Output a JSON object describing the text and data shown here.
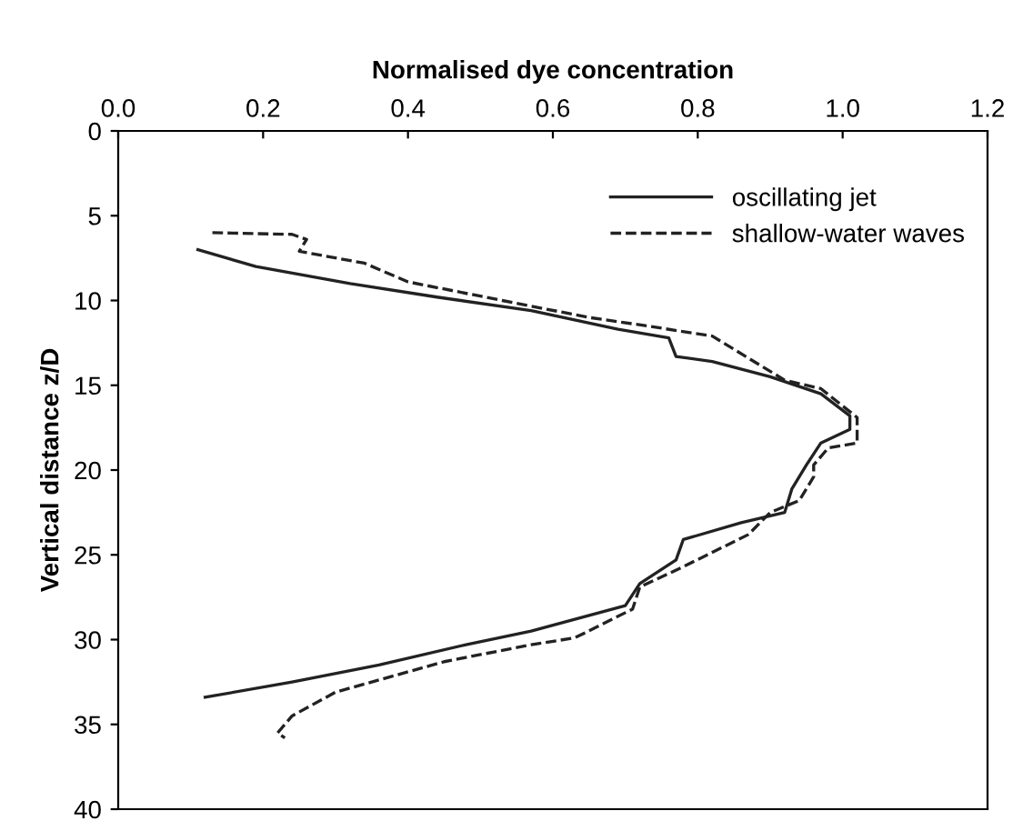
{
  "chart_data": {
    "type": "line",
    "xlabel": "Normalised dye concentration",
    "ylabel": "Vertical distance z/D",
    "xlim": [
      0,
      1.2
    ],
    "xticks": [
      {
        "value": 0,
        "label": "0.0"
      },
      {
        "value": 0.2,
        "label": "0.2"
      },
      {
        "value": 0.4,
        "label": "0.4"
      },
      {
        "value": 0.6,
        "label": "0.6"
      },
      {
        "value": 0.8,
        "label": "0.8"
      },
      {
        "value": 1.0,
        "label": "1.0"
      },
      {
        "value": 1.2,
        "label": "1.2"
      }
    ],
    "ylim": [
      40,
      0
    ],
    "yticks": [
      0,
      5,
      10,
      15,
      20,
      25,
      30,
      35,
      40
    ],
    "grid": false,
    "legend": "top right",
    "marker": "none",
    "series": [
      {
        "name": "oscillating jet",
        "color": "#222222",
        "line_style": "solid",
        "x": [
          0.11,
          0.19,
          0.32,
          0.44,
          0.57,
          0.69,
          0.76,
          0.77,
          0.82,
          0.9,
          0.97,
          1.01,
          1.01,
          0.97,
          0.95,
          0.93,
          0.92,
          0.86,
          0.78,
          0.77,
          0.72,
          0.7,
          0.57,
          0.48,
          0.36,
          0.24,
          0.12
        ],
        "values": [
          7.0,
          8.0,
          9.0,
          9.8,
          10.6,
          11.7,
          12.2,
          13.3,
          13.6,
          14.5,
          15.5,
          16.8,
          17.6,
          18.4,
          19.7,
          21.1,
          22.5,
          23.1,
          24.1,
          25.3,
          26.7,
          28.0,
          29.5,
          30.3,
          31.5,
          32.5,
          33.4
        ]
      },
      {
        "name": "shallow-water waves",
        "color": "#222222",
        "line_style": "dashed",
        "x": [
          0.13,
          0.24,
          0.26,
          0.25,
          0.34,
          0.4,
          0.53,
          0.65,
          0.73,
          0.82,
          0.87,
          0.92,
          0.97,
          1.02,
          1.02,
          0.98,
          0.96,
          0.96,
          0.94,
          0.9,
          0.87,
          0.78,
          0.72,
          0.71,
          0.63,
          0.57,
          0.45,
          0.3,
          0.24,
          0.22,
          0.23
        ],
        "values": [
          6.0,
          6.1,
          6.4,
          7.1,
          7.8,
          8.9,
          10.0,
          11.0,
          11.5,
          12.1,
          13.4,
          14.7,
          15.2,
          16.9,
          18.4,
          18.7,
          19.7,
          20.4,
          21.8,
          22.5,
          23.8,
          25.7,
          26.9,
          28.2,
          29.9,
          30.3,
          31.3,
          33.1,
          34.5,
          35.5,
          35.8
        ]
      }
    ]
  }
}
